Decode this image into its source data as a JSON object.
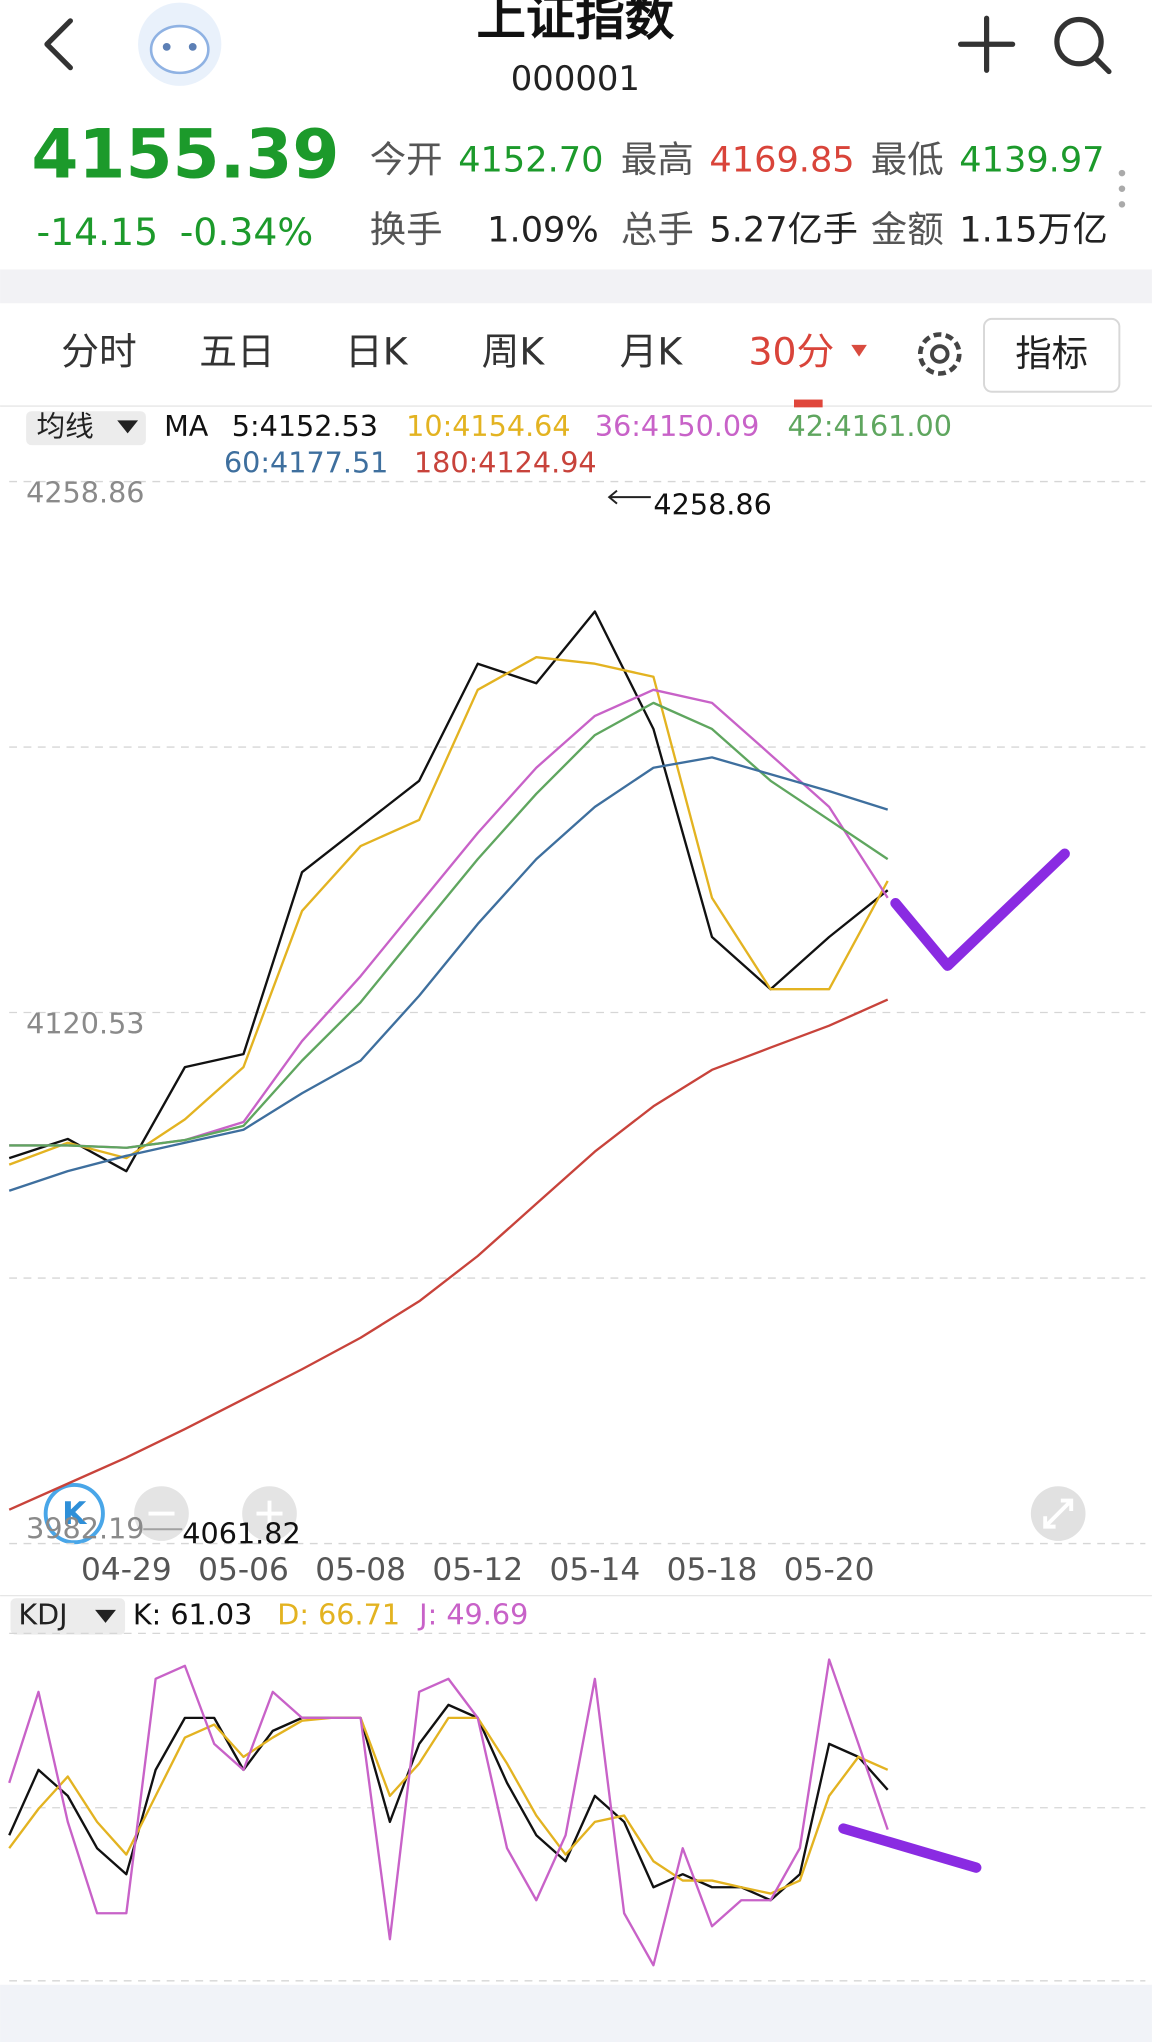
{
  "header": {
    "title": "上证指数",
    "code": "000001"
  },
  "quote": {
    "price": "4155.39",
    "change": "-14.15",
    "change_pct": "-0.34%",
    "stats": [
      {
        "label": "今开",
        "value": "4152.70"
      },
      {
        "label": "最高",
        "value": "4169.85"
      },
      {
        "label": "最低",
        "value": "4139.97"
      },
      {
        "label": "换手",
        "value": "1.09%"
      },
      {
        "label": "总手",
        "value": "5.27亿手"
      },
      {
        "label": "金额",
        "value": "1.15万亿"
      }
    ]
  },
  "tabs": [
    "分时",
    "五日",
    "日K",
    "周K",
    "月K",
    "30分"
  ],
  "indicator_button": "指标",
  "chart_data": [
    {
      "type": "line",
      "selector": "均线",
      "legend_title": "MA",
      "categories": [
        null,
        null,
        "04-29",
        null,
        "05-06",
        null,
        "05-08",
        null,
        "05-12",
        null,
        "05-14",
        null,
        "05-18",
        null,
        "05-20",
        null
      ],
      "ylim": [
        3982.19,
        4258.86
      ],
      "yticks": [
        4258.86,
        4120.53,
        3982.19
      ],
      "grid": true,
      "annotations": [
        {
          "text": "4258.86"
        },
        {
          "text": "4061.82"
        }
      ],
      "series": [
        {
          "name": "5:4152.53",
          "color": "#111111",
          "values": [
            4082.6,
            4087.6,
            4079.2,
            4106.3,
            4109.7,
            4157.1,
            4169.0,
            4180.9,
            4211.4,
            4206.3,
            4225.0,
            4194.4,
            4140.2,
            4126.6,
            4140.2,
            4152.4
          ]
        },
        {
          "name": "10:4154.64",
          "color": "#e3b321",
          "values": [
            4080.9,
            4086.6,
            4082.6,
            4092.7,
            4106.3,
            4147.0,
            4163.9,
            4170.7,
            4204.6,
            4213.1,
            4211.4,
            4208.0,
            4150.4,
            4126.6,
            4126.6,
            4154.8
          ]
        },
        {
          "name": "36:4150.09",
          "color": "#c862c8",
          "values": [
            4085.9,
            4085.9,
            4085.3,
            4087.3,
            4092.0,
            4113.1,
            4130.0,
            4148.7,
            4167.3,
            4184.3,
            4197.8,
            4204.6,
            4201.2,
            4187.7,
            4174.1,
            4150.4
          ]
        },
        {
          "name": "42:4161.00",
          "color": "#5fa65f",
          "values": [
            4085.9,
            4085.9,
            4085.3,
            4087.3,
            4091.0,
            4108.0,
            4123.2,
            4141.9,
            4160.5,
            4177.5,
            4192.8,
            4201.2,
            4194.4,
            4180.9,
            4170.7,
            4160.5
          ]
        },
        {
          "name": "60:4177.51",
          "color": "#3e6f9e",
          "values": [
            4074.1,
            4079.2,
            4083.2,
            4086.6,
            4090.0,
            4099.5,
            4108.0,
            4124.9,
            4143.6,
            4160.5,
            4174.1,
            4184.3,
            4187.0,
            4182.6,
            4178.2,
            4173.4
          ]
        },
        {
          "name": "180:4124.94",
          "color": "#c8433b",
          "values": [
            3991.0,
            3997.8,
            4004.6,
            4012.0,
            4019.8,
            4027.6,
            4035.8,
            4045.3,
            4057.1,
            4070.7,
            4084.3,
            4096.1,
            4105.6,
            4111.4,
            4117.1,
            4123.9
          ]
        }
      ]
    },
    {
      "type": "line",
      "selector": "KDJ",
      "ylim": [
        0,
        100
      ],
      "series": [
        {
          "name": "K: 61.03",
          "color": "#111111",
          "values": [
            48.1,
            66.7,
            59.3,
            44.4,
            37.0,
            66.7,
            81.5,
            81.5,
            66.7,
            77.8,
            81.5,
            81.5,
            81.5,
            51.9,
            74.1,
            85.2,
            81.5,
            63.0,
            48.1,
            40.7,
            59.3,
            51.9,
            33.3,
            37.0,
            33.3,
            33.3,
            29.6,
            37.0,
            74.1,
            70.4,
            61.03
          ]
        },
        {
          "name": "D: 66.71",
          "color": "#e3b321",
          "values": [
            44.4,
            55.6,
            64.8,
            51.9,
            42.6,
            59.3,
            75.9,
            79.6,
            70.4,
            75.9,
            80.7,
            81.5,
            81.5,
            59.3,
            68.5,
            81.5,
            81.5,
            68.5,
            53.7,
            42.6,
            51.9,
            53.7,
            40.7,
            35.2,
            35.2,
            33.3,
            31.5,
            35.2,
            59.3,
            70.4,
            66.71
          ]
        },
        {
          "name": "J: 49.69",
          "color": "#c862c8",
          "values": [
            63.0,
            88.9,
            51.9,
            25.9,
            25.9,
            92.6,
            96.3,
            74.1,
            66.7,
            88.9,
            81.5,
            81.5,
            81.5,
            18.5,
            88.9,
            92.6,
            81.5,
            44.4,
            29.6,
            48.1,
            92.6,
            25.9,
            11.1,
            44.4,
            22.2,
            29.6,
            29.6,
            44.4,
            98.1,
            74.1,
            49.69
          ]
        }
      ]
    }
  ]
}
